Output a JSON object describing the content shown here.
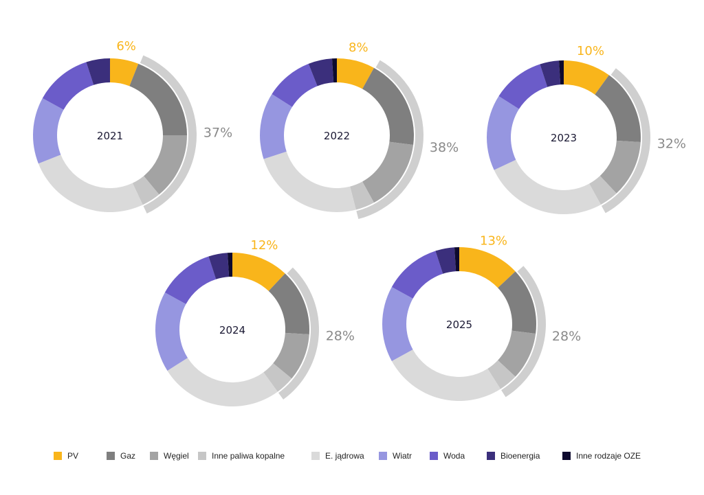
{
  "chart_data": {
    "type": "pie",
    "variant": "donut",
    "categories": [
      "PV",
      "Gaz",
      "Węgiel",
      "Inne paliwa kopalne",
      "E. jądrowa",
      "Wiatr",
      "Woda",
      "Bioenergia",
      "Inne rodzaje OZE"
    ],
    "colors": [
      "#F9B51B",
      "#7F7F7F",
      "#A3A3A3",
      "#C6C6C6",
      "#DADADA",
      "#9696E0",
      "#6B5CC9",
      "#3B2F7C",
      "#0E0A2E"
    ],
    "legend_position": "bottom",
    "charts": [
      {
        "year": "2021",
        "values": [
          6,
          19,
          14,
          4,
          26,
          14,
          12,
          5,
          0
        ],
        "pv_label": "6%",
        "fossil_label": "37%"
      },
      {
        "year": "2022",
        "values": [
          8,
          19,
          15,
          4,
          24,
          14,
          10,
          5,
          1
        ],
        "pv_label": "8%",
        "fossil_label": "38%"
      },
      {
        "year": "2023",
        "values": [
          10,
          16,
          12,
          4,
          26,
          16,
          11,
          4,
          1
        ],
        "pv_label": "10%",
        "fossil_label": "32%"
      },
      {
        "year": "2024",
        "values": [
          12,
          14,
          10,
          4,
          26,
          17,
          12,
          4,
          1
        ],
        "pv_label": "12%",
        "fossil_label": "28%"
      },
      {
        "year": "2025",
        "values": [
          13,
          14,
          10,
          4,
          26,
          16,
          12,
          4,
          1
        ],
        "pv_label": "13%",
        "fossil_label": "28%"
      }
    ]
  }
}
